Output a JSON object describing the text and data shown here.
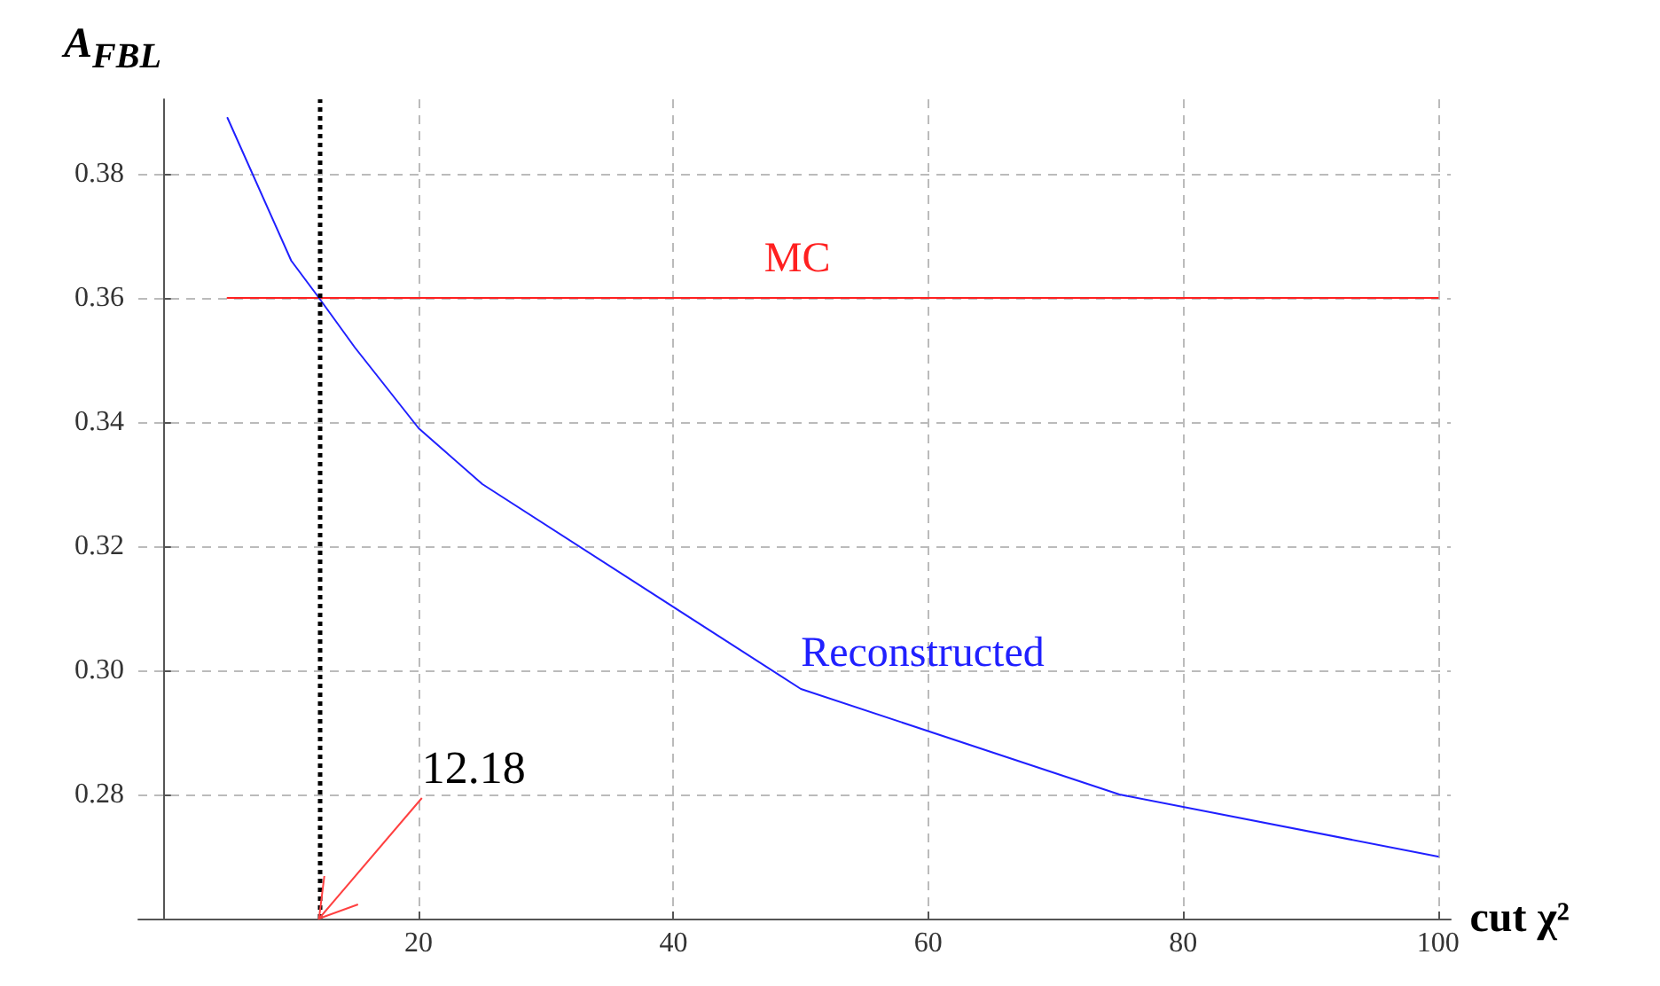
{
  "chart_data": {
    "type": "line",
    "xlabel": "cut χ²",
    "ylabel": "A$_{FB}$$_{L}$",
    "xlim": [
      -2,
      101
    ],
    "ylim": [
      0.26,
      0.392
    ],
    "xticks": [
      20,
      40,
      60,
      80,
      100
    ],
    "yticks": [
      {
        "value": 0.28,
        "label": "0.28"
      },
      {
        "value": 0.3,
        "label": "0.30"
      },
      {
        "value": 0.32,
        "label": "0.32"
      },
      {
        "value": 0.34,
        "label": "0.34"
      },
      {
        "value": 0.36,
        "label": "0.36"
      },
      {
        "value": 0.38,
        "label": "0.38"
      }
    ],
    "grid": true,
    "line_style": "solid",
    "marker": "none",
    "series": [
      {
        "name": "MC",
        "color": "#ff2020",
        "x": [
          5,
          100
        ],
        "values": [
          0.36,
          0.36
        ]
      },
      {
        "name": "Reconstructed",
        "color": "#2020ff",
        "x": [
          5,
          10,
          12.18,
          15,
          20,
          25,
          50,
          75,
          100
        ],
        "values": [
          0.389,
          0.366,
          0.36,
          0.352,
          0.339,
          0.33,
          0.297,
          0.28,
          0.27
        ]
      }
    ],
    "annotations": [
      {
        "text": "12.18",
        "x": 12.18,
        "y": 0.26
      }
    ],
    "ref_lines": [
      {
        "axis": "x",
        "value": 12.18,
        "color": "#000000",
        "line_style": "dotted"
      }
    ]
  }
}
